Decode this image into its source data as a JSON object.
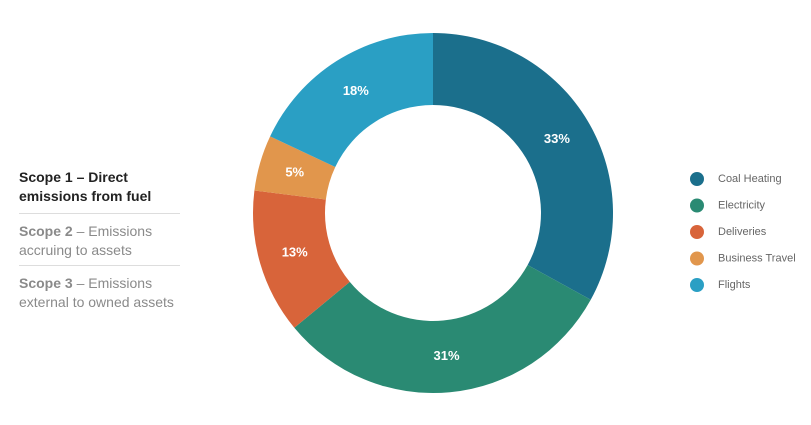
{
  "scopes": [
    {
      "name": "Scope 1",
      "description": "– Direct emissions from fuel",
      "active": true
    },
    {
      "name": "Scope 2",
      "description": "– Emissions accruing to assets",
      "active": false
    },
    {
      "name": "Scope 3",
      "description": "– Emissions external to owned assets",
      "active": false
    }
  ],
  "chart_data": {
    "type": "donut",
    "categories": [
      "Coal Heating",
      "Electricity",
      "Deliveries",
      "Business Travel",
      "Flights"
    ],
    "values": [
      33,
      31,
      13,
      5,
      18
    ],
    "value_labels": [
      "33%",
      "31%",
      "13%",
      "5%",
      "18%"
    ],
    "colors": [
      "#1b6f8c",
      "#2a8a73",
      "#d8643a",
      "#e1964c",
      "#2a9fc4"
    ]
  }
}
